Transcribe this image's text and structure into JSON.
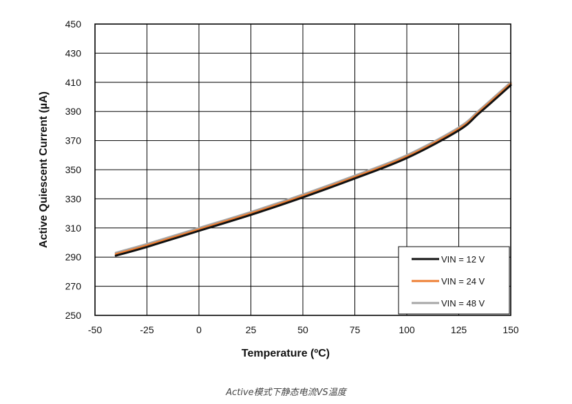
{
  "chart_data": {
    "type": "line",
    "xlabel": "Temperature (ºC)",
    "ylabel": "Active Quiescent Current (µA)",
    "xlim": [
      -50,
      150
    ],
    "ylim": [
      250,
      450
    ],
    "xticks": [
      -50,
      -25,
      0,
      25,
      50,
      75,
      100,
      125,
      150
    ],
    "yticks": [
      250,
      270,
      290,
      310,
      330,
      350,
      370,
      390,
      410,
      430,
      450
    ],
    "grid": true,
    "legend_position": "bottom-right",
    "x": [
      -40,
      -25,
      0,
      25,
      50,
      75,
      100,
      125,
      135,
      150
    ],
    "series": [
      {
        "name": "VIN = 12 V",
        "color": "#111111",
        "values": [
          291,
          297,
          308,
          319,
          331,
          344,
          358,
          377,
          389,
          408
        ]
      },
      {
        "name": "VIN = 24 V",
        "color": "#ed7d31",
        "values": [
          292,
          298,
          309,
          320,
          332,
          345,
          359,
          378,
          390,
          409
        ]
      },
      {
        "name": "VIN = 48 V",
        "color": "#a6a6a6",
        "values": [
          293,
          299,
          310,
          321,
          333,
          346,
          360,
          379,
          391,
          410
        ]
      }
    ]
  },
  "caption": "Active模式下静态电流VS温度"
}
